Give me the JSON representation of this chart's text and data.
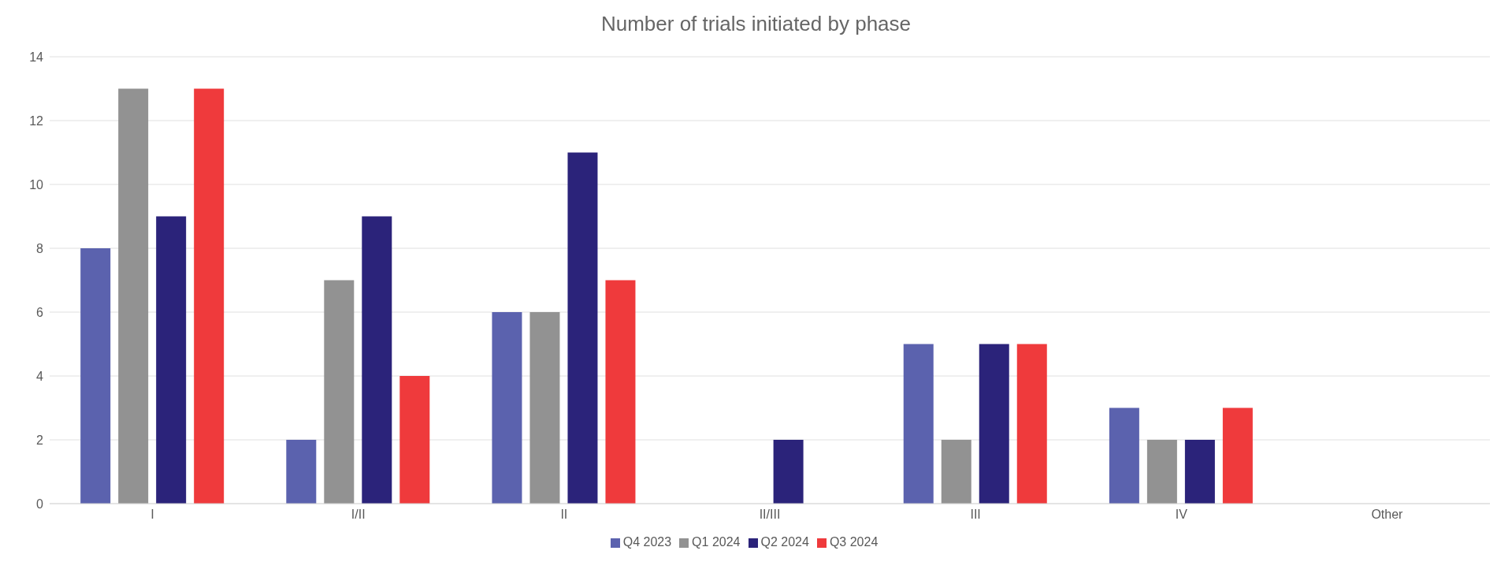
{
  "chart_data": {
    "type": "bar",
    "title": "Number of trials initiated by phase",
    "categories": [
      "I",
      "I/II",
      "II",
      "II/III",
      "III",
      "IV",
      "Other"
    ],
    "series": [
      {
        "name": "Q4 2023",
        "color": "#5b62ae",
        "values": [
          8,
          2,
          6,
          0,
          5,
          3,
          0
        ]
      },
      {
        "name": "Q1 2024",
        "color": "#929292",
        "values": [
          13,
          7,
          6,
          0,
          2,
          2,
          0
        ]
      },
      {
        "name": "Q2 2024",
        "color": "#2b237a",
        "values": [
          9,
          9,
          11,
          2,
          5,
          2,
          0
        ]
      },
      {
        "name": "Q3 2024",
        "color": "#ef3a3c",
        "values": [
          13,
          4,
          7,
          0,
          5,
          3,
          0
        ]
      }
    ],
    "ylim": [
      0,
      14
    ],
    "yticks": [
      0,
      2,
      4,
      6,
      8,
      10,
      12,
      14
    ],
    "grid": "y",
    "legend": "bottom"
  }
}
